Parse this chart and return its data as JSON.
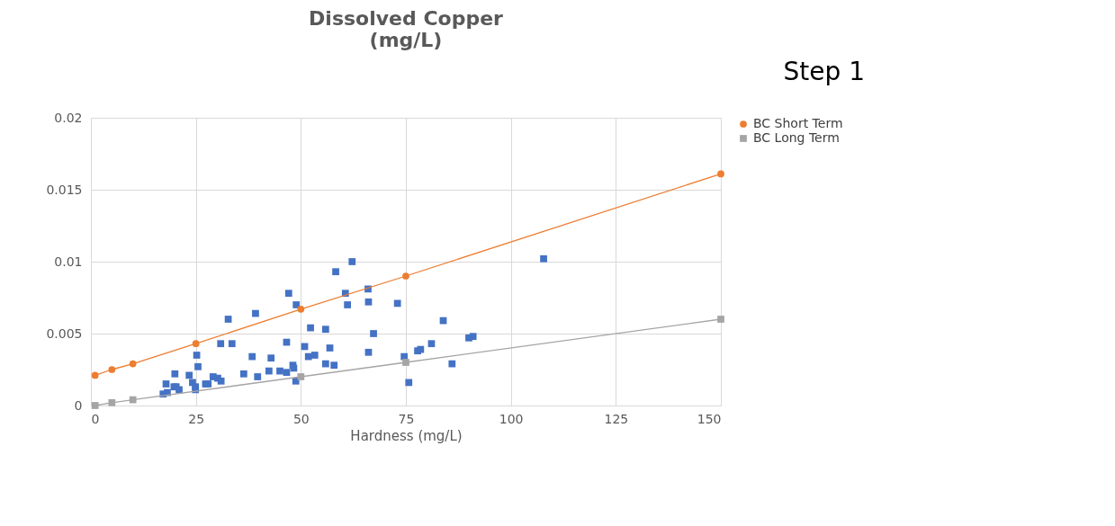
{
  "chart_data": {
    "type": "scatter",
    "title": "Dissolved Copper\n(mg/L)",
    "xlabel": "Hardness (mg/L)",
    "annotations": [
      "Step 1"
    ],
    "xlim": [
      0,
      150
    ],
    "xticks": [
      0,
      25,
      50,
      75,
      100,
      125,
      150
    ],
    "ylim": [
      0,
      0.02
    ],
    "yticks": [
      0,
      0.005,
      0.01,
      0.015,
      0.02
    ],
    "grid": true,
    "legend": "right",
    "series": [
      {
        "marker": "square",
        "color": "#4472c4",
        "x": [
          47.1,
          48.9,
          32.7,
          39.2,
          30.9,
          33.6,
          46.6,
          25.2,
          25.5,
          38.4,
          42.9,
          20,
          23.4,
          29.1,
          30.2,
          31,
          36.4,
          39.7,
          42.4,
          45,
          46.6,
          48.1,
          48.3,
          48.8,
          17.9,
          24.2,
          24.9,
          24.9,
          19.8,
          20.3,
          21,
          27.3,
          27.9,
          17.2,
          18.2,
          62.2,
          58.3,
          60.6,
          66,
          61.1,
          66.1,
          73,
          52.3,
          55.9,
          67.3,
          83.9,
          50.9,
          56.9,
          51.8,
          53.3,
          66.1,
          55.9,
          57.9,
          74.6,
          75.7,
          77.8,
          78.5,
          81.1,
          86,
          90,
          91,
          107.8
        ],
        "values": [
          0.0078,
          0.007,
          0.006,
          0.0064,
          0.0043,
          0.0043,
          0.0044,
          0.0035,
          0.0027,
          0.0034,
          0.0033,
          0.0022,
          0.0021,
          0.002,
          0.0019,
          0.0017,
          0.0022,
          0.002,
          0.0024,
          0.0024,
          0.0023,
          0.0028,
          0.0026,
          0.0017,
          0.0015,
          0.0016,
          0.0013,
          0.0011,
          0.0013,
          0.0013,
          0.0011,
          0.0015,
          0.0015,
          0.0008,
          0.0009,
          0.01,
          0.0093,
          0.0078,
          0.0081,
          0.007,
          0.0072,
          0.0071,
          0.0054,
          0.0053,
          0.005,
          0.0059,
          0.0041,
          0.004,
          0.0034,
          0.0035,
          0.0037,
          0.0029,
          0.0028,
          0.0034,
          0.0016,
          0.0038,
          0.0039,
          0.0043,
          0.0029,
          0.0047,
          0.0048,
          0.0102
        ]
      },
      {
        "type": "line",
        "name": "BC Short Term",
        "marker": "circle",
        "color": "#ed7d31",
        "x": [
          1,
          5,
          10,
          25,
          50,
          75,
          150
        ],
        "values": [
          0.0021,
          0.0025,
          0.0029,
          0.0043,
          0.0067,
          0.009,
          0.0161
        ]
      },
      {
        "type": "line",
        "name": "BC Long Term",
        "marker": "square",
        "color": "#a5a5a5",
        "x": [
          1,
          5,
          10,
          50,
          75,
          150
        ],
        "values": [
          0,
          0.0002,
          0.0004,
          0.002,
          0.003,
          0.006
        ]
      }
    ]
  }
}
